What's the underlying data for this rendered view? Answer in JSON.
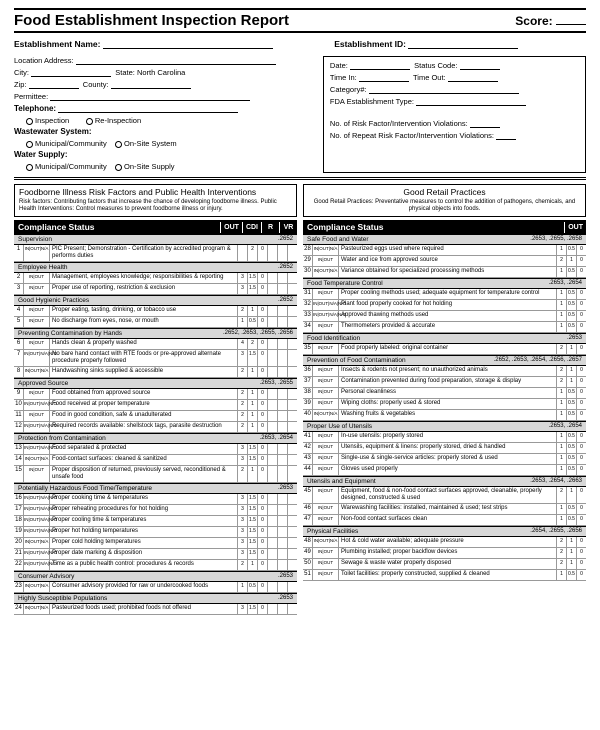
{
  "title": "Food Establishment Inspection Report",
  "score_label": "Score:",
  "header": {
    "est_name": "Establishment Name:",
    "est_id": "Establishment ID:",
    "loc": "Location Address:",
    "city": "City:",
    "state_label": "State:",
    "state": "North Carolina",
    "zip": "Zip:",
    "county": "County:",
    "permittee": "Permittee:",
    "telephone": "Telephone:",
    "inspection": "Inspection",
    "reinspection": "Re-Inspection",
    "ww": "Wastewater System:",
    "muni": "Municipal/Community",
    "onsite_sys": "On-Site System",
    "ws": "Water Supply:",
    "onsite_sup": "On-Site Supply",
    "date": "Date:",
    "status": "Status Code:",
    "timein": "Time In:",
    "timeout": "Time Out:",
    "cat": "Category#:",
    "fda": "FDA Establishment Type:",
    "riskv": "No. of Risk Factor/Intervention Violations:",
    "repv": "No. of Repeat Risk Factor/Intervention Violations:"
  },
  "left_panel": {
    "title": "Foodborne Illness Risk Factors and Public Health Interventions",
    "sub": "Risk factors: Contributing factors that increase the chance of developing foodborne illness. Public Health Interventions: Control measures to prevent foodborne illness or injury.",
    "comp": "Compliance Status",
    "hdrs": [
      "OUT",
      "CDI",
      "R",
      "VR"
    ]
  },
  "right_panel": {
    "title": "Good Retail Practices",
    "sub": "Good Retail Practices: Preventative measures to control the addition of pathogens, chemicals, and physical objects into foods.",
    "comp": "Compliance Status",
    "hdrs": [
      "OUT"
    ]
  },
  "left_cats": [
    {
      "name": "Supervision",
      "code": ".2652",
      "rows": [
        {
          "n": "1",
          "io": "IN OUT N/A",
          "d": "PIC Present; Demonstration - Certification by accredited program & performs duties",
          "t": [
            "",
            "2",
            "0"
          ]
        }
      ]
    },
    {
      "name": "Employee Health",
      "code": ".2652",
      "rows": [
        {
          "n": "2",
          "io": "IN OUT",
          "d": "Management, employees knowledge; responsibilities & reporting",
          "t": [
            "3",
            "1.5",
            "0"
          ]
        },
        {
          "n": "3",
          "io": "IN OUT",
          "d": "Proper use of reporting, restriction & exclusion",
          "t": [
            "3",
            "1.5",
            "0"
          ]
        }
      ]
    },
    {
      "name": "Good Hygienic Practices",
      "code": ".2652",
      "rows": [
        {
          "n": "4",
          "io": "IN OUT",
          "d": "Proper eating, tasting, drinking, or tobacco use",
          "t": [
            "2",
            "1",
            "0"
          ]
        },
        {
          "n": "5",
          "io": "IN OUT",
          "d": "No discharge from eyes, nose, or mouth",
          "t": [
            "1",
            "0.5",
            "0"
          ]
        }
      ]
    },
    {
      "name": "Preventing Contamination by Hands",
      "code": ".2652, .2653, .2655, .2656",
      "rows": [
        {
          "n": "6",
          "io": "IN OUT",
          "d": "Hands clean & properly washed",
          "t": [
            "4",
            "2",
            "0"
          ]
        },
        {
          "n": "7",
          "io": "IN OUT N/A N/O",
          "d": "No bare hand contact with RTE foods or pre-approved alternate procedure properly followed",
          "t": [
            "3",
            "1.5",
            "0"
          ]
        },
        {
          "n": "8",
          "io": "IN OUT N/A",
          "d": "Handwashing sinks supplied & accessible",
          "t": [
            "2",
            "1",
            "0"
          ]
        }
      ]
    },
    {
      "name": "Approved Source",
      "code": ".2653, .2655",
      "rows": [
        {
          "n": "9",
          "io": "IN OUT",
          "d": "Food obtained from approved source",
          "t": [
            "2",
            "1",
            "0"
          ]
        },
        {
          "n": "10",
          "io": "IN OUT N/A N/O",
          "d": "Food received at proper temperature",
          "t": [
            "2",
            "1",
            "0"
          ]
        },
        {
          "n": "11",
          "io": "IN OUT",
          "d": "Food in good condition, safe & unadulterated",
          "t": [
            "2",
            "1",
            "0"
          ]
        },
        {
          "n": "12",
          "io": "IN OUT N/A N/O",
          "d": "Required records available: shellstock tags, parasite destruction",
          "t": [
            "2",
            "1",
            "0"
          ]
        }
      ]
    },
    {
      "name": "Protection from Contamination",
      "code": ".2653, .2654",
      "rows": [
        {
          "n": "13",
          "io": "IN OUT N/A N/O",
          "d": "Food separated & protected",
          "t": [
            "3",
            "1.5",
            "0"
          ]
        },
        {
          "n": "14",
          "io": "IN OUT N/A",
          "d": "Food-contact surfaces: cleaned & sanitized",
          "t": [
            "3",
            "1.5",
            "0"
          ]
        },
        {
          "n": "15",
          "io": "IN OUT",
          "d": "Proper disposition of returned, previously served, reconditioned & unsafe food",
          "t": [
            "2",
            "1",
            "0"
          ]
        }
      ]
    },
    {
      "name": "Potentially Hazardous Food Time/Temperature",
      "code": ".2653",
      "rows": [
        {
          "n": "16",
          "io": "IN OUT N/A N/O",
          "d": "Proper cooking time & temperatures",
          "t": [
            "3",
            "1.5",
            "0"
          ]
        },
        {
          "n": "17",
          "io": "IN OUT N/A N/O",
          "d": "Proper reheating procedures for hot holding",
          "t": [
            "3",
            "1.5",
            "0"
          ]
        },
        {
          "n": "18",
          "io": "IN OUT N/A N/O",
          "d": "Proper cooling time & temperatures",
          "t": [
            "3",
            "1.5",
            "0"
          ]
        },
        {
          "n": "19",
          "io": "IN OUT N/A N/O",
          "d": "Proper hot holding temperatures",
          "t": [
            "3",
            "1.5",
            "0"
          ]
        },
        {
          "n": "20",
          "io": "IN OUT N/A",
          "d": "Proper cold holding temperatures",
          "t": [
            "3",
            "1.5",
            "0"
          ]
        },
        {
          "n": "21",
          "io": "IN OUT N/A N/O",
          "d": "Proper date marking & disposition",
          "t": [
            "3",
            "1.5",
            "0"
          ]
        },
        {
          "n": "22",
          "io": "IN OUT N/A N/O",
          "d": "Time as a public health control: procedures & records",
          "t": [
            "2",
            "1",
            "0"
          ]
        }
      ]
    },
    {
      "name": "Consumer Advisory",
      "code": ".2653",
      "rows": [
        {
          "n": "23",
          "io": "IN OUT N/A",
          "d": "Consumer advisory provided for raw or undercooked foods",
          "t": [
            "1",
            "0.5",
            "0"
          ]
        }
      ]
    },
    {
      "name": "Highly Susceptible Populations",
      "code": ".2653",
      "rows": [
        {
          "n": "24",
          "io": "IN OUT N/A",
          "d": "Pasteurized foods used; prohibited foods not offered",
          "t": [
            "3",
            "1.5",
            "0"
          ]
        }
      ]
    }
  ],
  "right_cats": [
    {
      "name": "Safe Food and Water",
      "code": ".2653, .2655, .2658",
      "rows": [
        {
          "n": "28",
          "io": "IN OUT N/A",
          "d": "Pasteurized eggs used where required",
          "t": [
            "1",
            "0.5",
            "0"
          ]
        },
        {
          "n": "29",
          "io": "IN OUT",
          "d": "Water and ice from approved source",
          "t": [
            "2",
            "1",
            "0"
          ]
        },
        {
          "n": "30",
          "io": "IN OUT N/A",
          "d": "Variance obtained for specialized processing methods",
          "t": [
            "1",
            "0.5",
            "0"
          ]
        }
      ]
    },
    {
      "name": "Food Temperature Control",
      "code": ".2653, .2654",
      "rows": [
        {
          "n": "31",
          "io": "IN OUT",
          "d": "Proper cooling methods used; adequate equipment for temperature control",
          "t": [
            "1",
            "0.5",
            "0"
          ]
        },
        {
          "n": "32",
          "io": "IN OUT N/A N/O",
          "d": "Plant food properly cooked for hot holding",
          "t": [
            "1",
            "0.5",
            "0"
          ]
        },
        {
          "n": "33",
          "io": "IN OUT N/A N/O",
          "d": "Approved thawing methods used",
          "t": [
            "1",
            "0.5",
            "0"
          ]
        },
        {
          "n": "34",
          "io": "IN OUT",
          "d": "Thermometers provided & accurate",
          "t": [
            "1",
            "0.5",
            "0"
          ]
        }
      ]
    },
    {
      "name": "Food Identification",
      "code": ".2653",
      "rows": [
        {
          "n": "35",
          "io": "IN OUT",
          "d": "Food properly labeled: original container",
          "t": [
            "2",
            "1",
            "0"
          ]
        }
      ]
    },
    {
      "name": "Prevention of Food Contamination",
      "code": ".2652, .2653, .2654, .2656, .2657",
      "rows": [
        {
          "n": "36",
          "io": "IN OUT",
          "d": "Insects & rodents not present; no unauthorized animals",
          "t": [
            "2",
            "1",
            "0"
          ]
        },
        {
          "n": "37",
          "io": "IN OUT",
          "d": "Contamination prevented during food preparation, storage & display",
          "t": [
            "2",
            "1",
            "0"
          ]
        },
        {
          "n": "38",
          "io": "IN OUT",
          "d": "Personal cleanliness",
          "t": [
            "1",
            "0.5",
            "0"
          ]
        },
        {
          "n": "39",
          "io": "IN OUT",
          "d": "Wiping cloths: properly used & stored",
          "t": [
            "1",
            "0.5",
            "0"
          ]
        },
        {
          "n": "40",
          "io": "IN OUT N/A",
          "d": "Washing fruits & vegetables",
          "t": [
            "1",
            "0.5",
            "0"
          ]
        }
      ]
    },
    {
      "name": "Proper Use of Utensils",
      "code": ".2653, .2654",
      "rows": [
        {
          "n": "41",
          "io": "IN OUT",
          "d": "In-use utensils: properly stored",
          "t": [
            "1",
            "0.5",
            "0"
          ]
        },
        {
          "n": "42",
          "io": "IN OUT",
          "d": "Utensils, equipment & linens: properly stored, dried & handled",
          "t": [
            "1",
            "0.5",
            "0"
          ]
        },
        {
          "n": "43",
          "io": "IN OUT",
          "d": "Single-use & single-service articles: properly stored & used",
          "t": [
            "1",
            "0.5",
            "0"
          ]
        },
        {
          "n": "44",
          "io": "IN OUT",
          "d": "Gloves used properly",
          "t": [
            "1",
            "0.5",
            "0"
          ]
        }
      ]
    },
    {
      "name": "Utensils and Equipment",
      "code": ".2653, .2654, .2663",
      "rows": [
        {
          "n": "45",
          "io": "IN OUT",
          "d": "Equipment, food & non-food contact surfaces approved, cleanable, properly designed, constructed & used",
          "t": [
            "2",
            "1",
            "0"
          ]
        },
        {
          "n": "46",
          "io": "IN OUT",
          "d": "Warewashing facilities: installed, maintained & used; test strips",
          "t": [
            "1",
            "0.5",
            "0"
          ]
        },
        {
          "n": "47",
          "io": "IN OUT",
          "d": "Non-food contact surfaces clean",
          "t": [
            "1",
            "0.5",
            "0"
          ]
        }
      ]
    },
    {
      "name": "Physical Facilities",
      "code": ".2654, .2655, .2656",
      "rows": [
        {
          "n": "48",
          "io": "IN OUT N/A",
          "d": "Hot & cold water available; adequate pressure",
          "t": [
            "2",
            "1",
            "0"
          ]
        },
        {
          "n": "49",
          "io": "IN OUT",
          "d": "Plumbing installed; proper backflow devices",
          "t": [
            "2",
            "1",
            "0"
          ]
        },
        {
          "n": "50",
          "io": "IN OUT",
          "d": "Sewage & waste water properly disposed",
          "t": [
            "2",
            "1",
            "0"
          ]
        },
        {
          "n": "51",
          "io": "IN OUT",
          "d": "Toilet facilities: properly constructed, supplied & cleaned",
          "t": [
            "1",
            "0.5",
            "0"
          ]
        }
      ]
    }
  ]
}
